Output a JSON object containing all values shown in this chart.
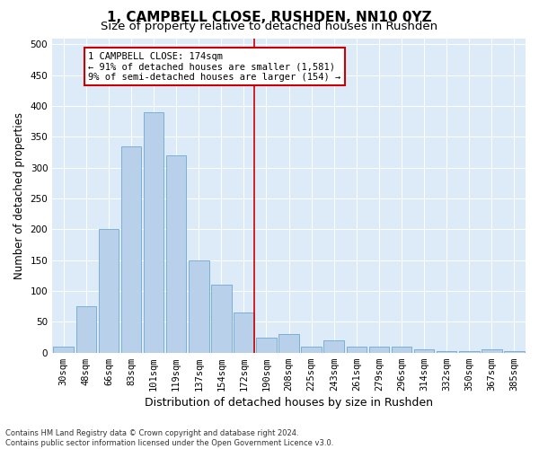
{
  "title": "1, CAMPBELL CLOSE, RUSHDEN, NN10 0YZ",
  "subtitle": "Size of property relative to detached houses in Rushden",
  "xlabel": "Distribution of detached houses by size in Rushden",
  "ylabel": "Number of detached properties",
  "categories": [
    "30sqm",
    "48sqm",
    "66sqm",
    "83sqm",
    "101sqm",
    "119sqm",
    "137sqm",
    "154sqm",
    "172sqm",
    "190sqm",
    "208sqm",
    "225sqm",
    "243sqm",
    "261sqm",
    "279sqm",
    "296sqm",
    "314sqm",
    "332sqm",
    "350sqm",
    "367sqm",
    "385sqm"
  ],
  "values": [
    10,
    75,
    200,
    335,
    390,
    320,
    150,
    110,
    65,
    25,
    30,
    10,
    20,
    10,
    10,
    10,
    5,
    2,
    2,
    5,
    2
  ],
  "bar_color": "#b8d0ea",
  "bar_edge_color": "#6fa8d0",
  "vline_pos": 8.47,
  "vline_color": "#cc0000",
  "annotation_text": "1 CAMPBELL CLOSE: 174sqm\n← 91% of detached houses are smaller (1,581)\n9% of semi-detached houses are larger (154) →",
  "annotation_box_facecolor": "#ffffff",
  "annotation_box_edgecolor": "#cc0000",
  "ylim": [
    0,
    510
  ],
  "yticks": [
    0,
    50,
    100,
    150,
    200,
    250,
    300,
    350,
    400,
    450,
    500
  ],
  "bg_color": "#ddeaf7",
  "footer_line1": "Contains HM Land Registry data © Crown copyright and database right 2024.",
  "footer_line2": "Contains public sector information licensed under the Open Government Licence v3.0.",
  "title_fontsize": 11,
  "subtitle_fontsize": 9.5,
  "xlabel_fontsize": 9,
  "ylabel_fontsize": 8.5,
  "tick_fontsize": 7.5,
  "annot_fontsize": 7.5,
  "footer_fontsize": 6
}
